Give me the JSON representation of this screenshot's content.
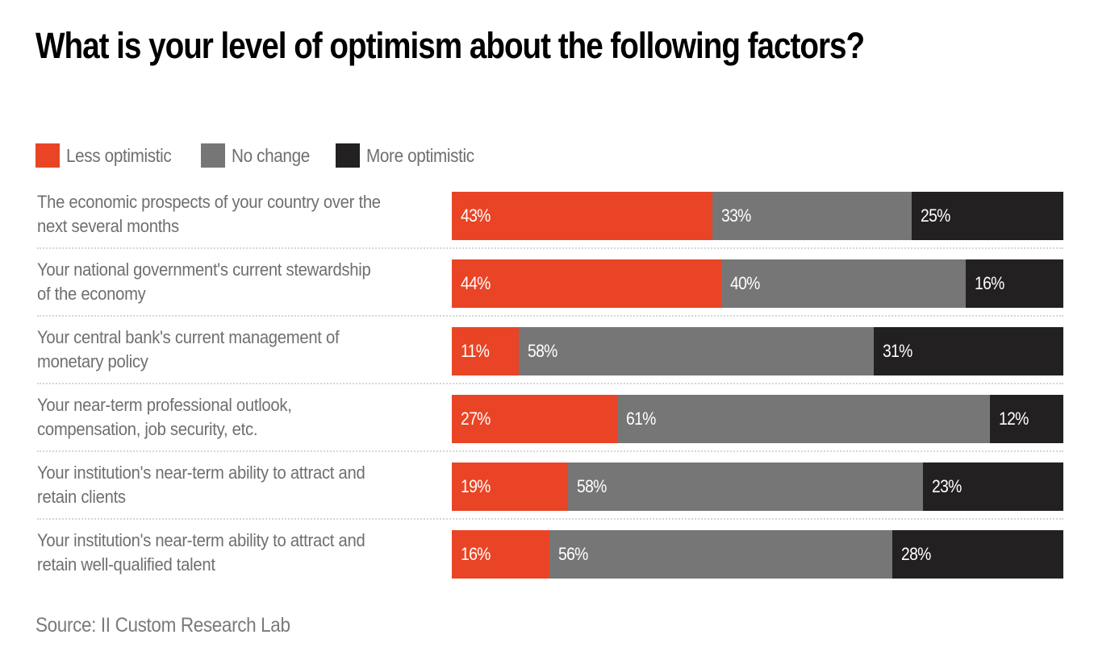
{
  "chart_data": {
    "type": "bar",
    "orientation": "horizontal",
    "stacked": true,
    "title": "What is your level of optimism about the following factors?",
    "xlabel": "",
    "ylabel": "",
    "xlim": [
      0,
      100
    ],
    "grid": false,
    "legend_position": "top-left",
    "categories": [
      "The economic prospects of your country over the next several months",
      "Your national government's current stewardship of the economy",
      "Your central bank's current management of monetary policy",
      "Your near-term professional outlook, compensation, job security, etc.",
      "Your institution's near-term ability to attract and retain clients",
      "Your institution's near-term ability to attract and retain well-qualified talent"
    ],
    "category_lines": [
      [
        "The economic prospects of your country over the",
        "next several months"
      ],
      [
        "Your national government's current stewardship",
        "of the economy"
      ],
      [
        "Your central bank's current management of",
        "monetary policy"
      ],
      [
        "Your near-term professional outlook,",
        "compensation, job security, etc."
      ],
      [
        "Your institution's near-term ability to attract and",
        "retain clients"
      ],
      [
        "Your institution's near-term ability to attract and",
        "retain well-qualified talent"
      ]
    ],
    "series": [
      {
        "name": "Less optimistic",
        "color": "#e94425",
        "values": [
          43,
          44,
          11,
          27,
          19,
          16
        ]
      },
      {
        "name": "No change",
        "color": "#767676",
        "values": [
          33,
          40,
          58,
          61,
          58,
          56
        ]
      },
      {
        "name": "More optimistic",
        "color": "#222021",
        "values": [
          25,
          16,
          31,
          12,
          23,
          28
        ]
      }
    ],
    "value_suffix": "%",
    "source": "Source: II Custom Research Lab"
  }
}
